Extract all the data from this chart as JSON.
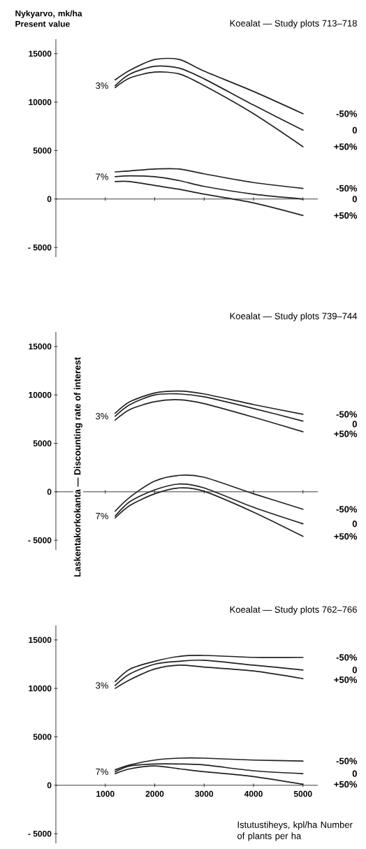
{
  "chart_data": [
    {
      "type": "line",
      "title": "Koealat — Study plots 713–718",
      "ylabel": "Nykyarvo, mk/ha Present value",
      "x": [
        1200,
        1500,
        2000,
        2500,
        3000,
        4000,
        5000
      ],
      "series": [
        {
          "name": "-50%",
          "color": "#222222",
          "values": [
            12300,
            13300,
            14400,
            14400,
            13200,
            11100,
            8800
          ]
        },
        {
          "name": "0",
          "color": "#222222",
          "values": [
            11700,
            12900,
            13700,
            13500,
            12400,
            9700,
            7100
          ]
        },
        {
          "name": "+50%",
          "color": "#222222",
          "values": [
            11500,
            12500,
            13100,
            12900,
            11700,
            8800,
            5400
          ]
        },
        {
          "name": "-50%",
          "color": "#222222",
          "values": [
            2800,
            2900,
            3100,
            3100,
            2600,
            1700,
            1100
          ]
        },
        {
          "name": "0",
          "color": "#222222",
          "values": [
            2300,
            2400,
            2300,
            1900,
            1300,
            500,
            0
          ]
        },
        {
          "name": "+50%",
          "color": "#222222",
          "values": [
            1800,
            1800,
            1400,
            1000,
            500,
            -400,
            -1700
          ]
        }
      ],
      "annotations": [
        "3%",
        "7%"
      ],
      "xlim": [
        0,
        5300
      ],
      "ylim": [
        -6000,
        16500
      ],
      "xticks": [
        1000,
        2000,
        3000,
        4000,
        5000
      ],
      "yticks": [
        {
          "value": -5000,
          "label": "- 5000"
        },
        {
          "value": 0,
          "label": "0"
        },
        {
          "value": 5000,
          "label": "5000"
        },
        {
          "value": 10000,
          "label": "10000"
        },
        {
          "value": 15000,
          "label": "15000"
        }
      ],
      "tick_labels": "y",
      "legend": false,
      "marker": "none",
      "line_style": "solid"
    },
    {
      "type": "line",
      "title": "Koealat — Study plots 739–744",
      "x": [
        1200,
        1500,
        2000,
        2500,
        3000,
        4000,
        5000
      ],
      "series": [
        {
          "name": "-50%",
          "color": "#222222",
          "values": [
            8100,
            9300,
            10200,
            10400,
            10100,
            9000,
            8000
          ]
        },
        {
          "name": "0",
          "color": "#222222",
          "values": [
            7800,
            9000,
            10000,
            10100,
            9800,
            8600,
            7300
          ]
        },
        {
          "name": "+50%",
          "color": "#222222",
          "values": [
            7400,
            8500,
            9300,
            9500,
            9100,
            7700,
            6200
          ]
        },
        {
          "name": "-50%",
          "color": "#222222",
          "values": [
            -2000,
            -550,
            1100,
            1700,
            1500,
            -200,
            -1800
          ]
        },
        {
          "name": "0",
          "color": "#222222",
          "values": [
            -2500,
            -1000,
            200,
            800,
            400,
            -1600,
            -3300
          ]
        },
        {
          "name": "+50%",
          "color": "#222222",
          "values": [
            -2700,
            -1400,
            -200,
            400,
            50,
            -2100,
            -4600
          ]
        }
      ],
      "ylabel": "Laskentakorkokanta — Discounting rate of interest",
      "annotations": [
        "3%",
        "7%"
      ],
      "xlim": [
        0,
        5300
      ],
      "ylim": [
        -6000,
        16500
      ],
      "xticks": [
        1000,
        2000,
        3000,
        4000,
        5000
      ],
      "yticks": [
        {
          "value": -5000,
          "label": "- 5000"
        },
        {
          "value": 0,
          "label": "0"
        },
        {
          "value": 5000,
          "label": "5000"
        },
        {
          "value": 10000,
          "label": "10000"
        },
        {
          "value": 15000,
          "label": "15000"
        }
      ],
      "tick_labels": "y",
      "legend": false,
      "marker": "none",
      "line_style": "solid"
    },
    {
      "type": "line",
      "title": "Koealat — Study plots 762–766",
      "xlabel": "Istutustiheys, kpl/ha Number of plants per ha",
      "x": [
        1200,
        1500,
        2000,
        2500,
        3000,
        4000,
        5000
      ],
      "series": [
        {
          "name": "-50%",
          "color": "#222222",
          "values": [
            10700,
            12000,
            12800,
            13300,
            13400,
            13200,
            13200
          ]
        },
        {
          "name": "0",
          "color": "#222222",
          "values": [
            10300,
            11500,
            12500,
            12800,
            12900,
            12400,
            11900
          ]
        },
        {
          "name": "+50%",
          "color": "#222222",
          "values": [
            10000,
            10900,
            12000,
            12400,
            12200,
            11800,
            11000
          ]
        },
        {
          "name": "-50%",
          "color": "#222222",
          "values": [
            1600,
            2100,
            2600,
            2800,
            2800,
            2600,
            2500
          ]
        },
        {
          "name": "0",
          "color": "#222222",
          "values": [
            1400,
            2000,
            2200,
            2200,
            2100,
            1500,
            1200
          ]
        },
        {
          "name": "+50%",
          "color": "#222222",
          "values": [
            1200,
            1700,
            2000,
            1700,
            1400,
            900,
            100
          ]
        }
      ],
      "annotations": [
        "3%",
        "7%"
      ],
      "xlim": [
        0,
        5300
      ],
      "ylim": [
        -6000,
        16500
      ],
      "xticks": [
        1000,
        2000,
        3000,
        4000,
        5000
      ],
      "yticks": [
        {
          "value": -5000,
          "label": "- 5000"
        },
        {
          "value": 0,
          "label": "0"
        },
        {
          "value": 5000,
          "label": "5000"
        },
        {
          "value": 10000,
          "label": "10000"
        },
        {
          "value": 15000,
          "label": "15000"
        }
      ],
      "legend": false,
      "marker": "none",
      "line_style": "solid"
    }
  ]
}
